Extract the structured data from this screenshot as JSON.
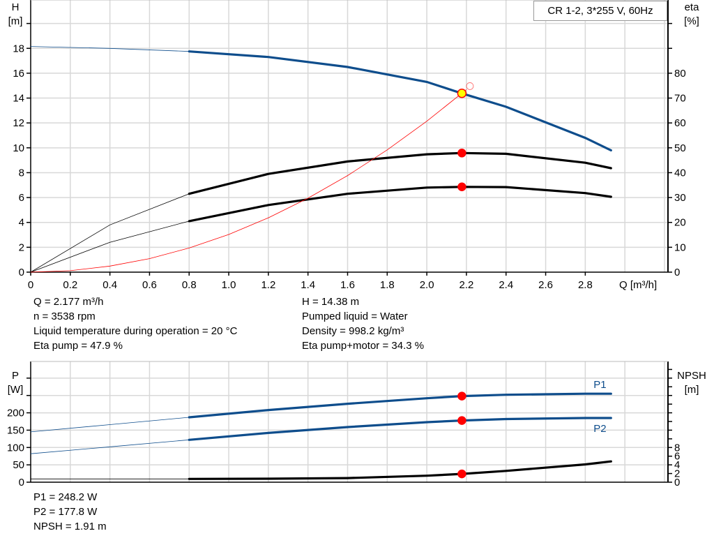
{
  "title": "CR 1-2, 3*255 V, 60Hz",
  "info_top_left": [
    "Q = 2.177 m³/h",
    "n = 3538 rpm",
    "Liquid temperature during operation = 20 °C",
    "Eta pump = 47.9 %"
  ],
  "info_top_right": [
    "H = 14.38 m",
    "Pumped liquid = Water",
    "Density = 998.2 kg/m³",
    "Eta pump+motor = 34.3 %"
  ],
  "info_bottom": [
    "P1 = 248.2 W",
    "P2 = 177.8 W",
    "NPSH = 1.91 m"
  ],
  "colors": {
    "blue": "#0e4d8c",
    "black": "#000000",
    "red": "#ff0000",
    "yellow": "#ffff00",
    "grid": "#d8d8d8"
  },
  "chart_data": [
    {
      "type": "line",
      "xlabel": "Q [m³/h]",
      "ylabel": "H\n[m]",
      "y2label": "eta\n[%]",
      "xlim": [
        0,
        3.2
      ],
      "ylim": [
        0,
        22
      ],
      "y2lim": [
        0,
        110
      ],
      "xticks": [
        0,
        0.2,
        0.4,
        0.6,
        0.8,
        1.0,
        1.2,
        1.4,
        1.6,
        1.8,
        2.0,
        2.2,
        2.4,
        2.6,
        2.8
      ],
      "xtick_labels": [
        "0",
        "0.2",
        "0.4",
        "0.6",
        "0.8",
        "1.0",
        "1.2",
        "1.4",
        "1.6",
        "1.8",
        "2.0",
        "2.2",
        "2.4",
        "2.6",
        "2.8"
      ],
      "yticks": [
        0,
        2,
        4,
        6,
        8,
        10,
        12,
        14,
        16,
        18
      ],
      "y2ticks": [
        0,
        10,
        20,
        30,
        40,
        50,
        60,
        70,
        80
      ],
      "grid": true,
      "series": [
        {
          "id": "H",
          "axis": "y",
          "color": "blue",
          "x": [
            0,
            0.4,
            0.8,
            1.2,
            1.6,
            2.0,
            2.177,
            2.4,
            2.8,
            2.93
          ],
          "y": [
            18.15,
            18.0,
            17.75,
            17.3,
            16.5,
            15.3,
            14.38,
            13.3,
            10.8,
            9.8
          ]
        },
        {
          "id": "eta_pump",
          "axis": "y2",
          "color": "black",
          "x": [
            0,
            0.4,
            0.8,
            1.2,
            1.6,
            2.0,
            2.177,
            2.4,
            2.8,
            2.93
          ],
          "y": [
            0,
            19,
            31.5,
            39.5,
            44.5,
            47.4,
            47.9,
            47.6,
            44,
            41.8
          ]
        },
        {
          "id": "eta_total",
          "axis": "y2",
          "color": "black",
          "x": [
            0,
            0.4,
            0.8,
            1.2,
            1.6,
            2.0,
            2.177,
            2.4,
            2.8,
            2.93
          ],
          "y": [
            0,
            12,
            20.5,
            27,
            31.5,
            34,
            34.3,
            34.2,
            31.8,
            30.3
          ]
        },
        {
          "id": "system",
          "axis": "y",
          "color": "red",
          "thin": true,
          "x": [
            0,
            0.2,
            0.4,
            0.6,
            0.8,
            1.0,
            1.2,
            1.4,
            1.6,
            1.8,
            2.0,
            2.2
          ],
          "y": [
            0,
            0.12,
            0.49,
            1.09,
            1.94,
            3.03,
            4.37,
            5.95,
            7.77,
            9.83,
            12.14,
            14.68
          ]
        }
      ],
      "points": [
        {
          "axis": "y",
          "x": 2.177,
          "y": 14.38,
          "fill": "yellow"
        },
        {
          "axis": "y2",
          "x": 2.177,
          "y": 47.9,
          "fill": "red"
        },
        {
          "axis": "y2",
          "x": 2.177,
          "y": 34.3,
          "fill": "red"
        }
      ]
    },
    {
      "type": "line",
      "ylabel": "P\n[W]",
      "y2label": "NPSH\n[m]",
      "xlim": [
        0,
        3.2
      ],
      "ylim": [
        0,
        350
      ],
      "y2lim": [
        0,
        28
      ],
      "yticks": [
        0,
        50,
        100,
        150,
        200
      ],
      "y2ticks": [
        0,
        2,
        4,
        6,
        8
      ],
      "grid": true,
      "series": [
        {
          "id": "P1",
          "name": "P1",
          "axis": "y",
          "color": "blue",
          "x": [
            0,
            0.4,
            0.8,
            1.2,
            1.6,
            2.0,
            2.177,
            2.4,
            2.8,
            2.93
          ],
          "y": [
            145,
            166,
            187,
            208,
            226,
            242,
            248.2,
            252,
            255,
            255
          ]
        },
        {
          "id": "P2",
          "name": "P2",
          "axis": "y",
          "color": "blue",
          "x": [
            0,
            0.4,
            0.8,
            1.2,
            1.6,
            2.0,
            2.177,
            2.4,
            2.8,
            2.93
          ],
          "y": [
            82,
            102,
            122,
            142,
            159,
            173,
            177.8,
            182,
            185,
            185
          ]
        },
        {
          "id": "NPSH",
          "axis": "y2",
          "color": "black",
          "x": [
            0,
            0.4,
            0.8,
            1.2,
            1.6,
            2.0,
            2.177,
            2.4,
            2.8,
            2.93
          ],
          "y": [
            0.75,
            0.75,
            0.76,
            0.8,
            0.95,
            1.5,
            1.91,
            2.6,
            4.1,
            4.8
          ]
        }
      ],
      "points": [
        {
          "axis": "y",
          "x": 2.177,
          "y": 248.2,
          "fill": "red"
        },
        {
          "axis": "y",
          "x": 2.177,
          "y": 177.8,
          "fill": "red"
        },
        {
          "axis": "y2",
          "x": 2.177,
          "y": 1.91,
          "fill": "red"
        }
      ]
    }
  ]
}
